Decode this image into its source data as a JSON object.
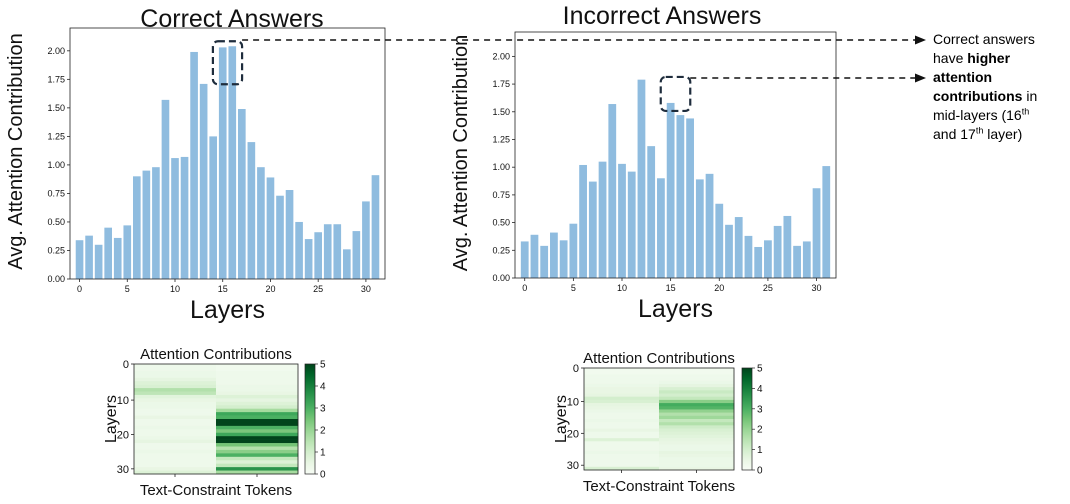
{
  "chart_data": [
    {
      "type": "bar",
      "title": "Correct Answers",
      "xlabel": "Layers",
      "ylabel": "Avg. Attention Contribution",
      "x": [
        0,
        1,
        2,
        3,
        4,
        5,
        6,
        7,
        8,
        9,
        10,
        11,
        12,
        13,
        14,
        15,
        16,
        17,
        18,
        19,
        20,
        21,
        22,
        23,
        24,
        25,
        26,
        27,
        28,
        29,
        30,
        31
      ],
      "values": [
        0.34,
        0.38,
        0.3,
        0.45,
        0.36,
        0.47,
        0.9,
        0.95,
        0.98,
        1.57,
        1.06,
        1.07,
        1.99,
        1.71,
        1.25,
        2.03,
        2.04,
        1.49,
        1.2,
        0.98,
        0.89,
        0.73,
        0.78,
        0.5,
        0.35,
        0.41,
        0.48,
        0.48,
        0.26,
        0.42,
        0.68,
        0.91
      ],
      "xticks": [
        0,
        5,
        10,
        15,
        20,
        25,
        30
      ],
      "yticks": [
        "0.00",
        "0.25",
        "0.50",
        "0.75",
        "1.00",
        "1.25",
        "1.50",
        "1.75",
        "2.00"
      ],
      "ylim": [
        0,
        2.2
      ],
      "color": "#8fbcdf",
      "highlight_layers": [
        15,
        16
      ]
    },
    {
      "type": "bar",
      "title": "Incorrect Answers",
      "xlabel": "Layers",
      "ylabel": "Avg. Attention Contribution",
      "x": [
        0,
        1,
        2,
        3,
        4,
        5,
        6,
        7,
        8,
        9,
        10,
        11,
        12,
        13,
        14,
        15,
        16,
        17,
        18,
        19,
        20,
        21,
        22,
        23,
        24,
        25,
        26,
        27,
        28,
        29,
        30,
        31
      ],
      "values": [
        0.33,
        0.39,
        0.29,
        0.41,
        0.34,
        0.49,
        1.02,
        0.87,
        1.05,
        1.57,
        1.03,
        0.96,
        1.79,
        1.19,
        0.9,
        1.58,
        1.47,
        1.44,
        0.89,
        0.94,
        0.67,
        0.48,
        0.55,
        0.38,
        0.28,
        0.34,
        0.47,
        0.56,
        0.29,
        0.33,
        0.81,
        1.01
      ],
      "xticks": [
        0,
        5,
        10,
        15,
        20,
        25,
        30
      ],
      "yticks": [
        "0.00",
        "0.25",
        "0.50",
        "0.75",
        "1.00",
        "1.25",
        "1.50",
        "1.75",
        "2.00"
      ],
      "ylim": [
        0,
        2.22
      ],
      "color": "#8fbcdf",
      "highlight_layers": [
        15,
        16
      ]
    },
    {
      "type": "heatmap",
      "title": "Attention Contributions",
      "xlabel": "Text-Constraint Tokens",
      "ylabel": "Layers",
      "rows": 32,
      "yticks": [
        0,
        10,
        20,
        30
      ],
      "colormap": "Greens",
      "colorbar_ticks": [
        0,
        1,
        2,
        3,
        4,
        5
      ],
      "vmin": 0,
      "vmax": 5,
      "columns": [
        {
          "values": [
            0.3,
            0.3,
            0.4,
            0.4,
            0.6,
            0.8,
            0.9,
            1.6,
            1.4,
            0.7,
            0.5,
            0.4,
            0.4,
            0.3,
            0.3,
            0.5,
            0.3,
            0.3,
            0.4,
            0.3,
            0.3,
            0.4,
            0.6,
            0.3,
            0.3,
            0.4,
            0.3,
            0.3,
            0.3,
            0.3,
            0.5,
            0.8
          ]
        },
        {
          "values": [
            0.2,
            0.2,
            0.3,
            0.3,
            0.3,
            0.3,
            0.4,
            0.4,
            0.5,
            0.8,
            0.6,
            0.8,
            1.0,
            1.8,
            3.2,
            3.0,
            5.0,
            5.0,
            3.0,
            2.4,
            3.2,
            5.0,
            5.0,
            2.5,
            1.6,
            2.2,
            3.0,
            1.3,
            0.8,
            1.3,
            3.6,
            1.8
          ]
        }
      ]
    },
    {
      "type": "heatmap",
      "title": "Attention Contributions",
      "xlabel": "Text-Constraint Tokens",
      "ylabel": "Layers",
      "rows": 32,
      "yticks": [
        0,
        10,
        20,
        30
      ],
      "colormap": "Greens",
      "colorbar_ticks": [
        0,
        1,
        2,
        3,
        4,
        5
      ],
      "vmin": 0,
      "vmax": 5,
      "columns": [
        {
          "values": [
            0.2,
            0.2,
            0.3,
            0.3,
            0.3,
            0.4,
            0.5,
            0.5,
            0.6,
            1.0,
            0.9,
            0.6,
            0.5,
            0.4,
            0.3,
            0.3,
            0.4,
            0.3,
            0.3,
            0.5,
            0.3,
            0.3,
            0.8,
            0.3,
            0.3,
            0.3,
            0.4,
            0.3,
            0.3,
            0.3,
            0.3,
            0.9
          ]
        },
        {
          "values": [
            0.2,
            0.2,
            0.3,
            0.3,
            0.4,
            0.6,
            0.9,
            1.2,
            1.0,
            1.3,
            2.2,
            3.1,
            2.9,
            2.1,
            1.6,
            1.9,
            1.3,
            1.6,
            1.1,
            0.9,
            0.8,
            0.7,
            0.6,
            0.5,
            0.4,
            0.4,
            0.6,
            0.5,
            0.4,
            0.4,
            0.4,
            0.5
          ]
        }
      ]
    }
  ],
  "annotation": {
    "line1": "Correct answers",
    "line2a": "have ",
    "line2b": "higher",
    "line3": "attention",
    "line4a": "contributions",
    "line4b": " in",
    "line5a": "mid-layers (16",
    "sup1": "th",
    "line6a": "and 17",
    "sup2": "th",
    "line6b": " layer)"
  }
}
